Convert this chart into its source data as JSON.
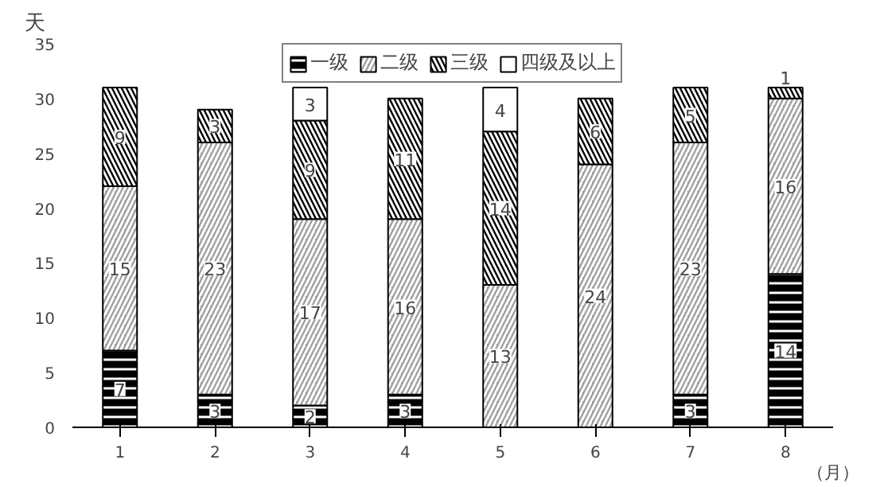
{
  "chart_data": {
    "type": "bar",
    "stacked": true,
    "categories": [
      "1",
      "2",
      "3",
      "4",
      "5",
      "6",
      "7",
      "8"
    ],
    "xlabel": "（月）",
    "ylabel": "天",
    "ylim": [
      0,
      35
    ],
    "yticks": [
      0,
      5,
      10,
      15,
      20,
      25,
      30,
      35
    ],
    "grid": false,
    "legend": "top",
    "data_labels": true,
    "series": [
      {
        "name": "一级",
        "color": "#000000",
        "values": [
          7,
          3,
          2,
          3,
          null,
          null,
          3,
          14
        ]
      },
      {
        "name": "二级",
        "color": "#a0a0a0",
        "values": [
          15,
          23,
          17,
          16,
          13,
          24,
          23,
          16
        ]
      },
      {
        "name": "三级",
        "color": "#000000",
        "values": [
          9,
          3,
          9,
          11,
          14,
          6,
          5,
          1
        ]
      },
      {
        "name": "四级及以上",
        "color": "#ffffff",
        "values": [
          null,
          null,
          3,
          null,
          4,
          null,
          null,
          null
        ]
      }
    ]
  }
}
